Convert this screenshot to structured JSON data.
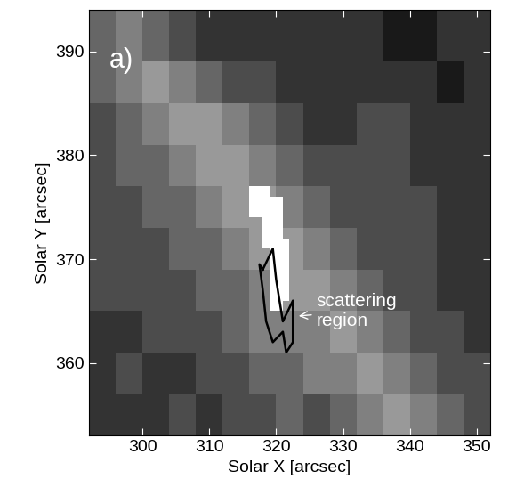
{
  "chart_data": {
    "type": "image",
    "panel_label": "a)",
    "x_label": "Solar X [arcsec]",
    "y_label": "Solar Y [arcsec]",
    "xlim": [
      292,
      352
    ],
    "ylim": [
      353,
      394
    ],
    "xticks": [
      300,
      310,
      320,
      330,
      340,
      350
    ],
    "yticks": [
      360,
      370,
      380,
      390
    ],
    "x_edges": [
      292,
      296,
      300,
      304,
      308,
      312,
      316,
      320,
      324,
      328,
      332,
      336,
      340,
      344,
      348,
      352
    ],
    "y_edges": [
      353,
      357,
      361,
      365,
      369,
      373,
      377,
      381,
      385,
      389,
      394
    ],
    "color_range": [
      0,
      10
    ],
    "cells": [
      [
        2,
        2,
        2,
        3,
        2,
        3,
        3,
        4,
        3,
        4,
        5,
        6,
        5,
        4,
        3
      ],
      [
        2,
        3,
        2,
        2,
        3,
        3,
        4,
        4,
        5,
        5,
        6,
        5,
        4,
        3,
        3
      ],
      [
        2,
        2,
        3,
        3,
        3,
        4,
        5,
        5,
        5,
        6,
        5,
        4,
        3,
        3,
        2
      ],
      [
        3,
        3,
        3,
        3,
        4,
        4,
        5,
        6,
        6,
        5,
        4,
        3,
        3,
        2,
        2
      ],
      [
        3,
        3,
        3,
        4,
        4,
        5,
        6,
        6,
        5,
        4,
        3,
        3,
        3,
        2,
        2
      ],
      [
        3,
        3,
        4,
        4,
        5,
        6,
        6,
        5,
        4,
        3,
        3,
        3,
        3,
        2,
        2
      ],
      [
        3,
        4,
        4,
        5,
        6,
        6,
        5,
        4,
        3,
        3,
        3,
        3,
        2,
        2,
        2
      ],
      [
        3,
        4,
        5,
        6,
        6,
        5,
        4,
        3,
        2,
        2,
        3,
        3,
        2,
        2,
        2
      ],
      [
        4,
        5,
        6,
        5,
        4,
        3,
        3,
        2,
        2,
        2,
        2,
        2,
        2,
        1,
        2
      ],
      [
        4,
        5,
        4,
        3,
        2,
        2,
        2,
        2,
        2,
        2,
        2,
        1,
        1,
        2,
        2
      ]
    ],
    "white_region": [
      [
        316,
        377
      ],
      [
        319,
        377
      ],
      [
        319,
        376
      ],
      [
        321,
        376
      ],
      [
        321,
        372
      ],
      [
        322,
        372
      ],
      [
        322,
        366
      ],
      [
        321,
        366
      ],
      [
        321,
        365
      ],
      [
        319,
        365
      ],
      [
        319,
        371
      ],
      [
        318,
        371
      ],
      [
        318,
        374
      ],
      [
        316,
        374
      ]
    ],
    "contour": [
      [
        318,
        369
      ],
      [
        319.5,
        371
      ],
      [
        320,
        368
      ],
      [
        321,
        364
      ],
      [
        322.5,
        366
      ],
      [
        322.5,
        362
      ],
      [
        321.5,
        361
      ],
      [
        321,
        363
      ],
      [
        319.5,
        362
      ],
      [
        318.5,
        364
      ],
      [
        318,
        367
      ],
      [
        317.5,
        369.5
      ],
      [
        318,
        369
      ]
    ],
    "annotation": {
      "text": "scattering\nregion",
      "x": 323,
      "y": 364.5,
      "text_x": 326,
      "text_y": 365
    }
  }
}
